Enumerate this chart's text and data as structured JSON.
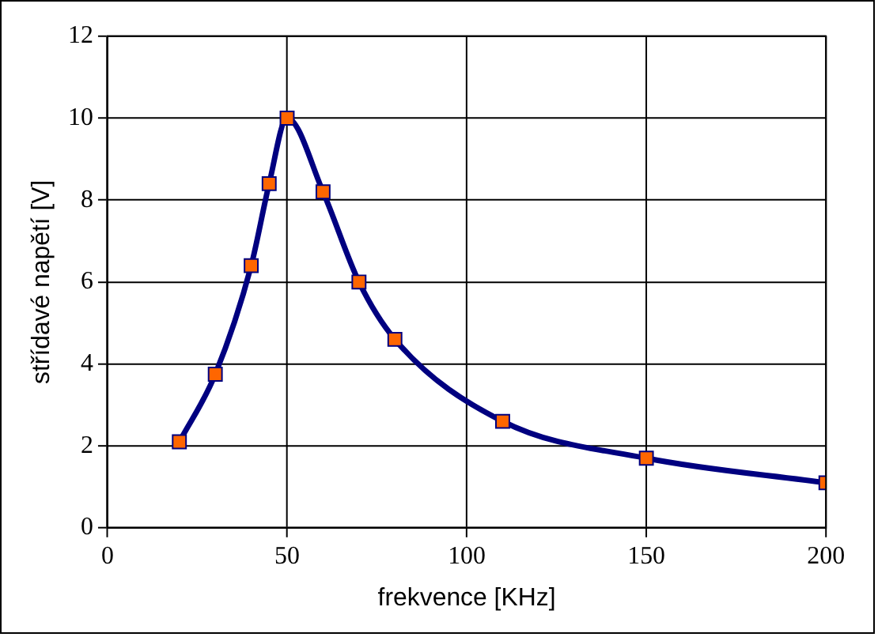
{
  "chart_data": {
    "type": "line",
    "xlabel": "frekvence [KHz]",
    "ylabel": "střídavé napětí [V]",
    "x": [
      20,
      30,
      40,
      45,
      50,
      60,
      70,
      80,
      110,
      150,
      200
    ],
    "series": [
      {
        "color": "#000080",
        "values": [
          2.1,
          3.75,
          6.4,
          8.4,
          10,
          8.2,
          6.0,
          4.6,
          2.6,
          1.7,
          1.1
        ]
      }
    ],
    "xlim": [
      0,
      200
    ],
    "xticks": [
      0,
      50,
      100,
      150,
      200
    ],
    "ylim": [
      0,
      12
    ],
    "yticks": [
      0,
      2,
      4,
      6,
      8,
      10,
      12
    ],
    "grid": true,
    "legend": false,
    "marker": "square",
    "line_style": "solid"
  }
}
